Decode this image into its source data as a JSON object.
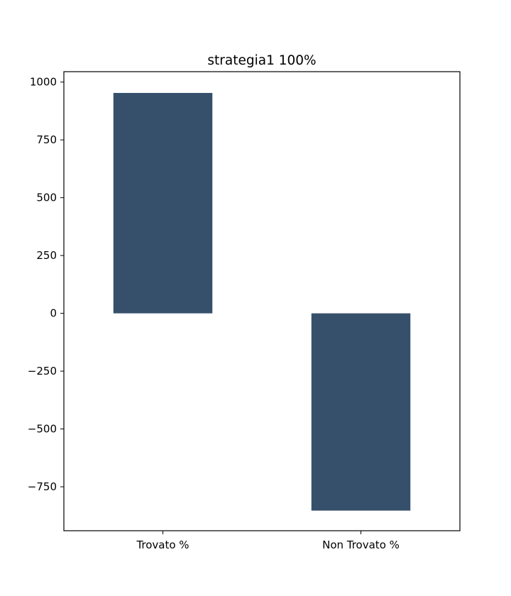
{
  "chart_data": {
    "type": "bar",
    "title": "strategia1 100%",
    "xlabel": "",
    "ylabel": "",
    "categories": [
      "Trovato %",
      "Non Trovato %"
    ],
    "values": [
      953,
      -853
    ],
    "ylim": [
      -940,
      1045
    ],
    "yticks": [
      1000,
      750,
      500,
      250,
      0,
      -250,
      -500,
      -750
    ],
    "ytick_labels": [
      "1000",
      "750",
      "500",
      "250",
      "0",
      "−250",
      "−500",
      "−750"
    ],
    "grid": false,
    "legend": "none",
    "bar_color": "#36506b",
    "axis_color": "#000000"
  }
}
